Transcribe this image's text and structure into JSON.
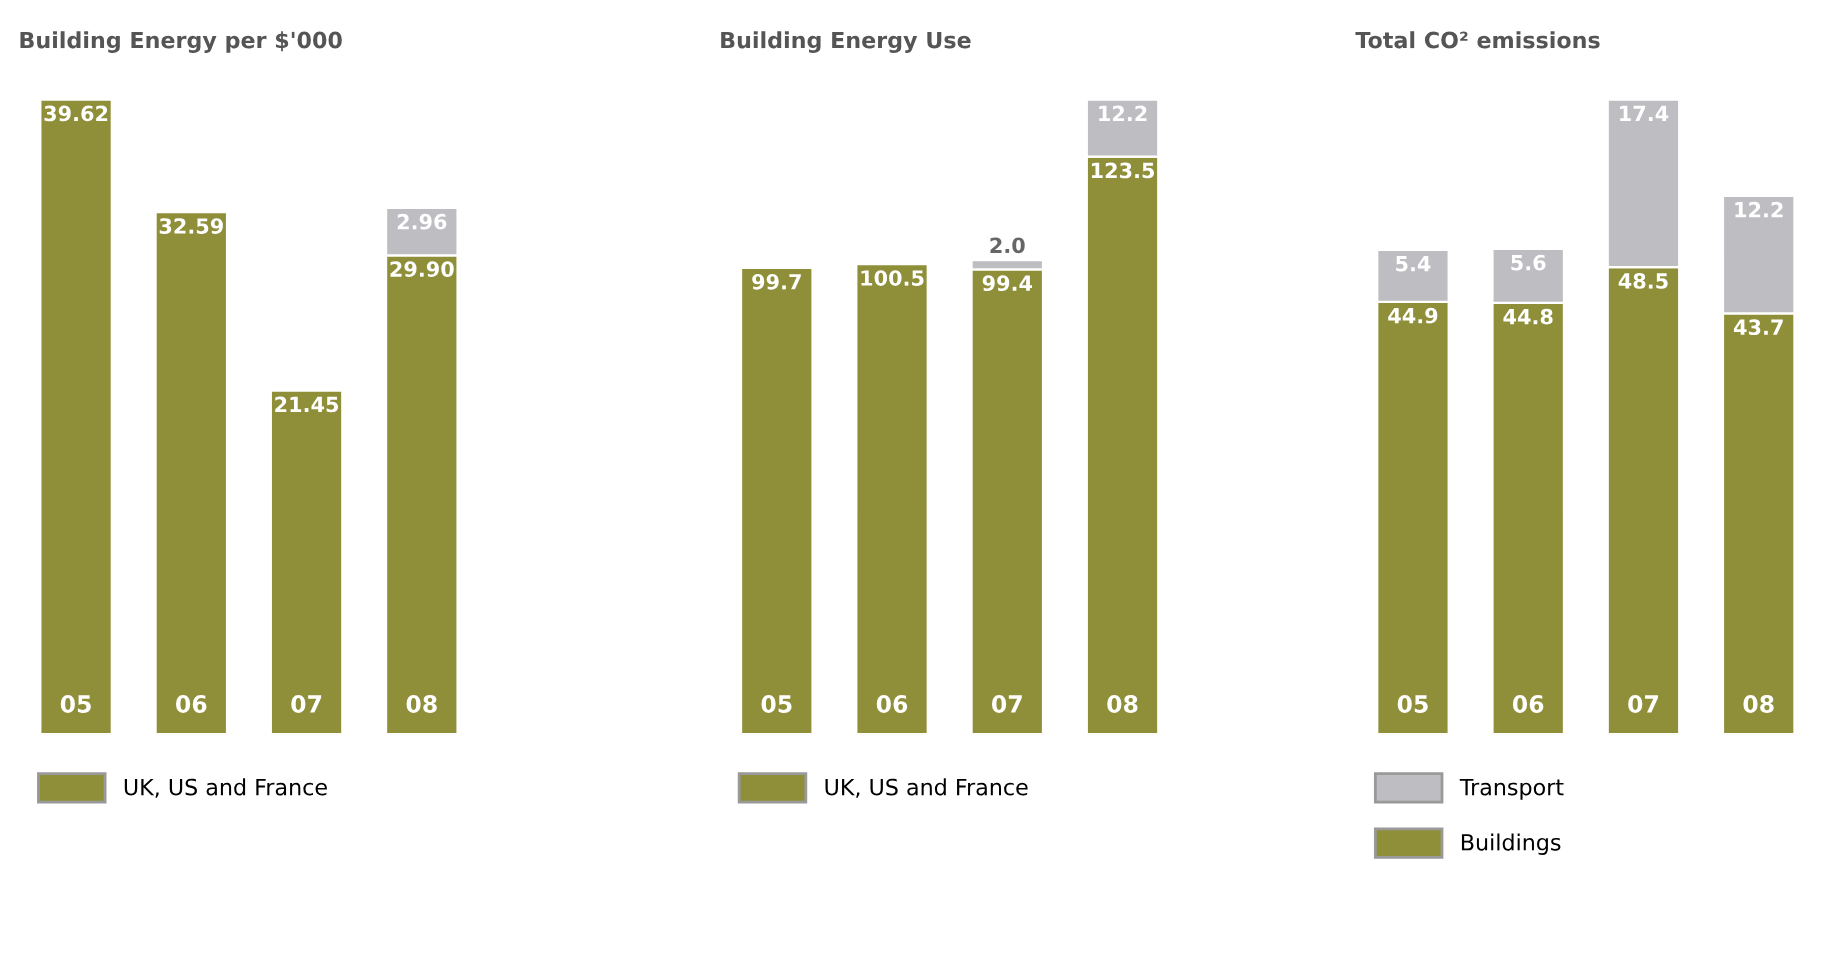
{
  "chart_data": [
    {
      "type": "bar",
      "title": "Building Energy per $'000",
      "categories": [
        "05",
        "06",
        "07",
        "08"
      ],
      "stacked": true,
      "legend": "bottom",
      "series": [
        {
          "name": "UK, US and France",
          "color": "#8f8f3a",
          "values": [
            39.62,
            32.59,
            21.45,
            29.9
          ],
          "value_labels": [
            "39.62",
            "32.59",
            "21.45",
            "29.90"
          ]
        },
        {
          "color": "#bdbdc2",
          "values": [
            null,
            null,
            null,
            2.96
          ],
          "value_labels": [
            null,
            null,
            null,
            "2.96"
          ]
        }
      ]
    },
    {
      "type": "bar",
      "title": "Building Energy Use",
      "categories": [
        "05",
        "06",
        "07",
        "08"
      ],
      "stacked": true,
      "legend": "bottom",
      "series": [
        {
          "name": "UK, US and France",
          "color": "#8f8f3a",
          "values": [
            99.7,
            100.5,
            99.4,
            123.5
          ],
          "value_labels": [
            "99.7",
            "100.5",
            "99.4",
            "123.5"
          ]
        },
        {
          "color": "#bdbdc2",
          "values": [
            null,
            null,
            2.0,
            12.2
          ],
          "value_labels": [
            null,
            null,
            "2.0",
            "12.2"
          ]
        }
      ]
    },
    {
      "type": "bar",
      "title": "Total CO² emissions",
      "categories": [
        "05",
        "06",
        "07",
        "08"
      ],
      "stacked": true,
      "legend": "bottom",
      "series": [
        {
          "name": "Buildings",
          "color": "#8f8f3a",
          "values": [
            44.9,
            44.8,
            48.5,
            43.7
          ],
          "value_labels": [
            "44.9",
            "44.8",
            "48.5",
            "43.7"
          ]
        },
        {
          "name": "Transport",
          "color": "#bdbdc2",
          "values": [
            5.4,
            5.6,
            17.4,
            12.2
          ],
          "value_labels": [
            "5.4",
            "5.6",
            "17.4",
            "12.2"
          ]
        }
      ]
    }
  ]
}
